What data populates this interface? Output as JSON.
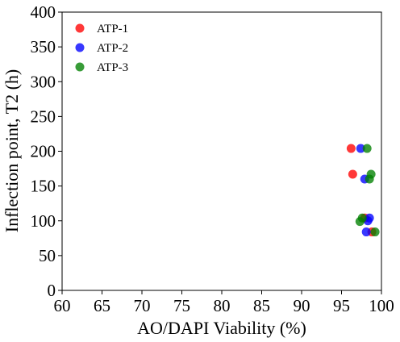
{
  "chart_data": {
    "type": "scatter",
    "title": "",
    "xlabel": "AO/DAPI Viability (%)",
    "ylabel": "Inflection point, T2 (h)",
    "xlim": [
      60,
      100
    ],
    "ylim": [
      0,
      400
    ],
    "xticks": [
      60,
      65,
      70,
      75,
      80,
      85,
      90,
      95,
      100
    ],
    "yticks": [
      0,
      50,
      100,
      150,
      200,
      250,
      300,
      350,
      400
    ],
    "grid": false,
    "legend_position": "top-left",
    "series": [
      {
        "name": "ATP-1",
        "color": "#ff0000",
        "points": [
          {
            "x": 96.2,
            "y": 204
          },
          {
            "x": 96.4,
            "y": 167
          },
          {
            "x": 97.9,
            "y": 104
          },
          {
            "x": 98.8,
            "y": 84
          }
        ]
      },
      {
        "name": "ATP-2",
        "color": "#0000ff",
        "points": [
          {
            "x": 97.4,
            "y": 204
          },
          {
            "x": 97.9,
            "y": 160
          },
          {
            "x": 98.5,
            "y": 104
          },
          {
            "x": 98.3,
            "y": 100
          },
          {
            "x": 98.1,
            "y": 84
          }
        ]
      },
      {
        "name": "ATP-3",
        "color": "#008000",
        "points": [
          {
            "x": 98.2,
            "y": 204
          },
          {
            "x": 98.7,
            "y": 167
          },
          {
            "x": 98.5,
            "y": 160
          },
          {
            "x": 97.6,
            "y": 104
          },
          {
            "x": 97.3,
            "y": 99
          },
          {
            "x": 99.2,
            "y": 84
          }
        ]
      }
    ]
  }
}
